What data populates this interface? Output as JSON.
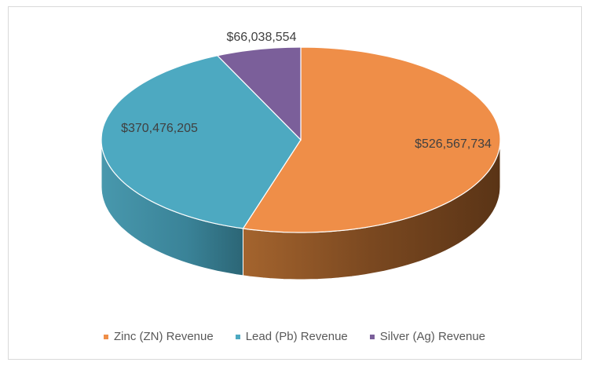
{
  "chart_data": {
    "type": "pie",
    "title": "",
    "style": "3d",
    "categories": [
      "Zinc (ZN) Revenue",
      "Lead (Pb) Revenue",
      "Silver (Ag) Revenue"
    ],
    "values": [
      526567734,
      370476205,
      66038554
    ],
    "data_labels": [
      "$526,567,734",
      "$370,476,205",
      "$66,038,554"
    ],
    "colors": [
      "#ef8e48",
      "#4da9c1",
      "#7b5f9a"
    ],
    "legend_position": "bottom"
  }
}
